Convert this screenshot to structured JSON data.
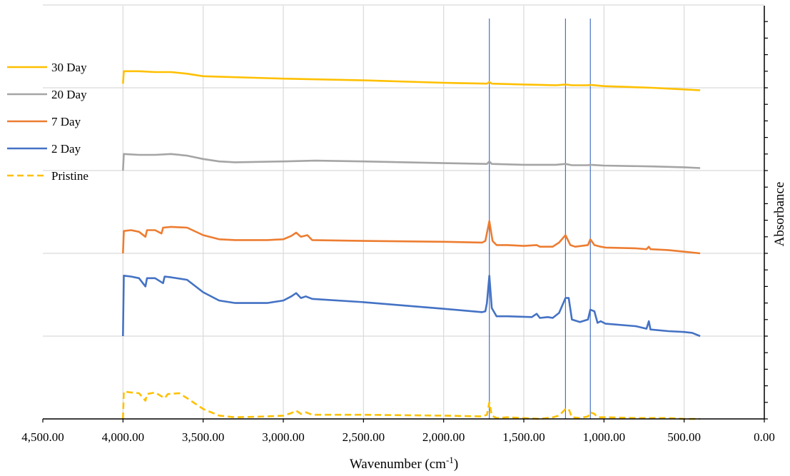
{
  "chart_data": {
    "type": "line",
    "title": "",
    "xlabel": "Wavenumber (cm",
    "xlabel_superscript": "-1",
    "xlabel_suffix": ")",
    "ylabel": "Absorbance",
    "xlim": [
      4500,
      0
    ],
    "x_reversed": true,
    "x_tick_labels": [
      "4,500.00",
      "4,000.00",
      "3,500.00",
      "3,000.00",
      "2,500.00",
      "2,000.00",
      "1,500.00",
      "1,000.00",
      "500.00",
      "0.00"
    ],
    "x_ticks": [
      4500,
      4000,
      3500,
      3000,
      2500,
      2000,
      1500,
      1000,
      500,
      0
    ],
    "ylim": [
      0,
      5
    ],
    "y_tick_labels_shown": false,
    "grid": true,
    "legend_position": "left",
    "reference_lines_x": [
      1715,
      1240,
      1085
    ],
    "series": [
      {
        "name": "30 Day",
        "color": "#FFC000",
        "dash": "solid",
        "points": [
          [
            4000,
            4.05
          ],
          [
            3995,
            4.2
          ],
          [
            3900,
            4.2
          ],
          [
            3800,
            4.19
          ],
          [
            3700,
            4.19
          ],
          [
            3600,
            4.17
          ],
          [
            3500,
            4.14
          ],
          [
            3000,
            4.11
          ],
          [
            2500,
            4.09
          ],
          [
            2000,
            4.06
          ],
          [
            1730,
            4.05
          ],
          [
            1715,
            4.07
          ],
          [
            1700,
            4.05
          ],
          [
            1500,
            4.04
          ],
          [
            1300,
            4.03
          ],
          [
            1240,
            4.04
          ],
          [
            1200,
            4.03
          ],
          [
            1100,
            4.03
          ],
          [
            1085,
            4.035
          ],
          [
            1000,
            4.02
          ],
          [
            700,
            4.0
          ],
          [
            500,
            3.98
          ],
          [
            400,
            3.97
          ]
        ]
      },
      {
        "name": "20 Day",
        "color": "#A5A5A5",
        "dash": "solid",
        "points": [
          [
            4000,
            3.0
          ],
          [
            3995,
            3.2
          ],
          [
            3900,
            3.19
          ],
          [
            3800,
            3.19
          ],
          [
            3700,
            3.2
          ],
          [
            3600,
            3.18
          ],
          [
            3500,
            3.14
          ],
          [
            3400,
            3.11
          ],
          [
            3300,
            3.1
          ],
          [
            3000,
            3.11
          ],
          [
            2800,
            3.12
          ],
          [
            2500,
            3.11
          ],
          [
            2000,
            3.09
          ],
          [
            1730,
            3.08
          ],
          [
            1715,
            3.11
          ],
          [
            1700,
            3.08
          ],
          [
            1500,
            3.07
          ],
          [
            1300,
            3.07
          ],
          [
            1240,
            3.08
          ],
          [
            1200,
            3.065
          ],
          [
            1100,
            3.065
          ],
          [
            1085,
            3.07
          ],
          [
            1000,
            3.06
          ],
          [
            700,
            3.05
          ],
          [
            500,
            3.04
          ],
          [
            400,
            3.03
          ]
        ]
      },
      {
        "name": "7 Day",
        "color": "#ED7D31",
        "dash": "solid",
        "points": [
          [
            4000,
            2.0
          ],
          [
            3995,
            2.27
          ],
          [
            3950,
            2.28
          ],
          [
            3900,
            2.26
          ],
          [
            3860,
            2.2
          ],
          [
            3850,
            2.28
          ],
          [
            3800,
            2.28
          ],
          [
            3760,
            2.24
          ],
          [
            3750,
            2.31
          ],
          [
            3700,
            2.32
          ],
          [
            3600,
            2.31
          ],
          [
            3500,
            2.22
          ],
          [
            3400,
            2.17
          ],
          [
            3300,
            2.16
          ],
          [
            3100,
            2.16
          ],
          [
            3000,
            2.17
          ],
          [
            2950,
            2.21
          ],
          [
            2920,
            2.25
          ],
          [
            2890,
            2.2
          ],
          [
            2850,
            2.22
          ],
          [
            2820,
            2.16
          ],
          [
            2500,
            2.15
          ],
          [
            2000,
            2.14
          ],
          [
            1760,
            2.13
          ],
          [
            1740,
            2.15
          ],
          [
            1715,
            2.39
          ],
          [
            1695,
            2.15
          ],
          [
            1670,
            2.1
          ],
          [
            1600,
            2.1
          ],
          [
            1500,
            2.09
          ],
          [
            1420,
            2.1
          ],
          [
            1400,
            2.08
          ],
          [
            1320,
            2.08
          ],
          [
            1280,
            2.13
          ],
          [
            1240,
            2.22
          ],
          [
            1210,
            2.1
          ],
          [
            1180,
            2.08
          ],
          [
            1100,
            2.1
          ],
          [
            1085,
            2.17
          ],
          [
            1060,
            2.1
          ],
          [
            1020,
            2.08
          ],
          [
            990,
            2.07
          ],
          [
            800,
            2.06
          ],
          [
            735,
            2.05
          ],
          [
            720,
            2.08
          ],
          [
            710,
            2.05
          ],
          [
            600,
            2.04
          ],
          [
            500,
            2.02
          ],
          [
            400,
            2.0
          ]
        ]
      },
      {
        "name": "2 Day",
        "color": "#4472C4",
        "dash": "solid",
        "points": [
          [
            4000,
            1.0
          ],
          [
            3995,
            1.73
          ],
          [
            3950,
            1.72
          ],
          [
            3900,
            1.7
          ],
          [
            3860,
            1.6
          ],
          [
            3850,
            1.7
          ],
          [
            3800,
            1.7
          ],
          [
            3750,
            1.64
          ],
          [
            3740,
            1.72
          ],
          [
            3700,
            1.71
          ],
          [
            3600,
            1.68
          ],
          [
            3500,
            1.53
          ],
          [
            3400,
            1.43
          ],
          [
            3300,
            1.4
          ],
          [
            3100,
            1.4
          ],
          [
            3000,
            1.43
          ],
          [
            2950,
            1.48
          ],
          [
            2920,
            1.52
          ],
          [
            2890,
            1.46
          ],
          [
            2860,
            1.48
          ],
          [
            2820,
            1.45
          ],
          [
            2500,
            1.41
          ],
          [
            2000,
            1.33
          ],
          [
            1760,
            1.29
          ],
          [
            1740,
            1.3
          ],
          [
            1730,
            1.4
          ],
          [
            1715,
            1.73
          ],
          [
            1700,
            1.34
          ],
          [
            1670,
            1.24
          ],
          [
            1600,
            1.24
          ],
          [
            1450,
            1.23
          ],
          [
            1420,
            1.27
          ],
          [
            1400,
            1.22
          ],
          [
            1350,
            1.23
          ],
          [
            1320,
            1.22
          ],
          [
            1280,
            1.28
          ],
          [
            1240,
            1.46
          ],
          [
            1220,
            1.46
          ],
          [
            1200,
            1.2
          ],
          [
            1150,
            1.17
          ],
          [
            1100,
            1.2
          ],
          [
            1085,
            1.32
          ],
          [
            1060,
            1.3
          ],
          [
            1040,
            1.16
          ],
          [
            1020,
            1.18
          ],
          [
            990,
            1.15
          ],
          [
            800,
            1.12
          ],
          [
            735,
            1.09
          ],
          [
            720,
            1.18
          ],
          [
            710,
            1.08
          ],
          [
            600,
            1.06
          ],
          [
            500,
            1.05
          ],
          [
            450,
            1.04
          ],
          [
            400,
            1.0
          ]
        ]
      },
      {
        "name": "Pristine",
        "color": "#FFC000",
        "dash": "dashed",
        "points": [
          [
            4000,
            0.0
          ],
          [
            3995,
            0.33
          ],
          [
            3950,
            0.32
          ],
          [
            3900,
            0.31
          ],
          [
            3860,
            0.22
          ],
          [
            3850,
            0.3
          ],
          [
            3800,
            0.32
          ],
          [
            3740,
            0.25
          ],
          [
            3720,
            0.3
          ],
          [
            3650,
            0.31
          ],
          [
            3600,
            0.25
          ],
          [
            3500,
            0.12
          ],
          [
            3400,
            0.04
          ],
          [
            3300,
            0.02
          ],
          [
            3100,
            0.03
          ],
          [
            3000,
            0.04
          ],
          [
            2950,
            0.07
          ],
          [
            2920,
            0.1
          ],
          [
            2890,
            0.06
          ],
          [
            2860,
            0.08
          ],
          [
            2820,
            0.05
          ],
          [
            2500,
            0.05
          ],
          [
            2000,
            0.04
          ],
          [
            1760,
            0.03
          ],
          [
            1730,
            0.05
          ],
          [
            1715,
            0.2
          ],
          [
            1700,
            0.04
          ],
          [
            1670,
            0.01
          ],
          [
            1600,
            0.02
          ],
          [
            1400,
            0.0
          ],
          [
            1320,
            0.02
          ],
          [
            1280,
            0.04
          ],
          [
            1240,
            0.12
          ],
          [
            1220,
            0.12
          ],
          [
            1200,
            0.02
          ],
          [
            1150,
            0.01
          ],
          [
            1100,
            0.03
          ],
          [
            1085,
            0.08
          ],
          [
            1060,
            0.06
          ],
          [
            1040,
            0.02
          ],
          [
            990,
            0.02
          ],
          [
            800,
            0.01
          ],
          [
            600,
            0.01
          ],
          [
            500,
            0.0
          ],
          [
            400,
            0.0
          ]
        ]
      }
    ]
  }
}
